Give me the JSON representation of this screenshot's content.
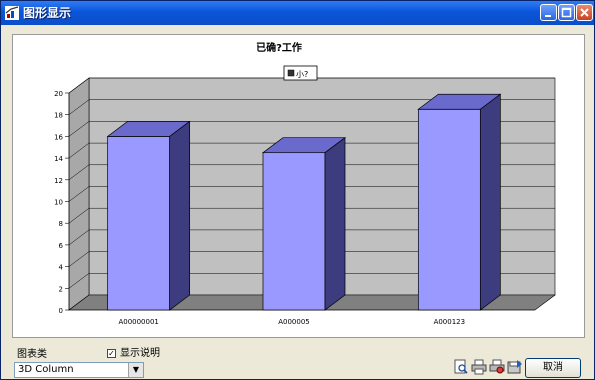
{
  "window": {
    "title": "图形显示",
    "accent": "#0a55d8"
  },
  "chart_data": {
    "type": "bar",
    "style": "3d-column",
    "title": "已确?工作",
    "legend": {
      "label": "小?",
      "placement": "top-center"
    },
    "categories": [
      "A00000001",
      "A000005",
      "A000123"
    ],
    "series": [
      {
        "values": [
          16,
          14.5,
          18.5
        ],
        "color": "#9999ff"
      }
    ],
    "ylim": [
      0,
      20
    ],
    "yticks": [
      "0",
      "2",
      "4",
      "6",
      "8",
      "10",
      "12",
      "14",
      "16",
      "18",
      "20"
    ],
    "grid": true
  },
  "controls": {
    "chart_type_label": "图表类",
    "chart_type_value": "3D Column",
    "show_legend_label": "显示说明",
    "show_legend_checked": true,
    "cancel_label": "取消"
  },
  "icons": [
    "print-preview-icon",
    "print-icon",
    "print-setup-icon",
    "export-icon"
  ]
}
